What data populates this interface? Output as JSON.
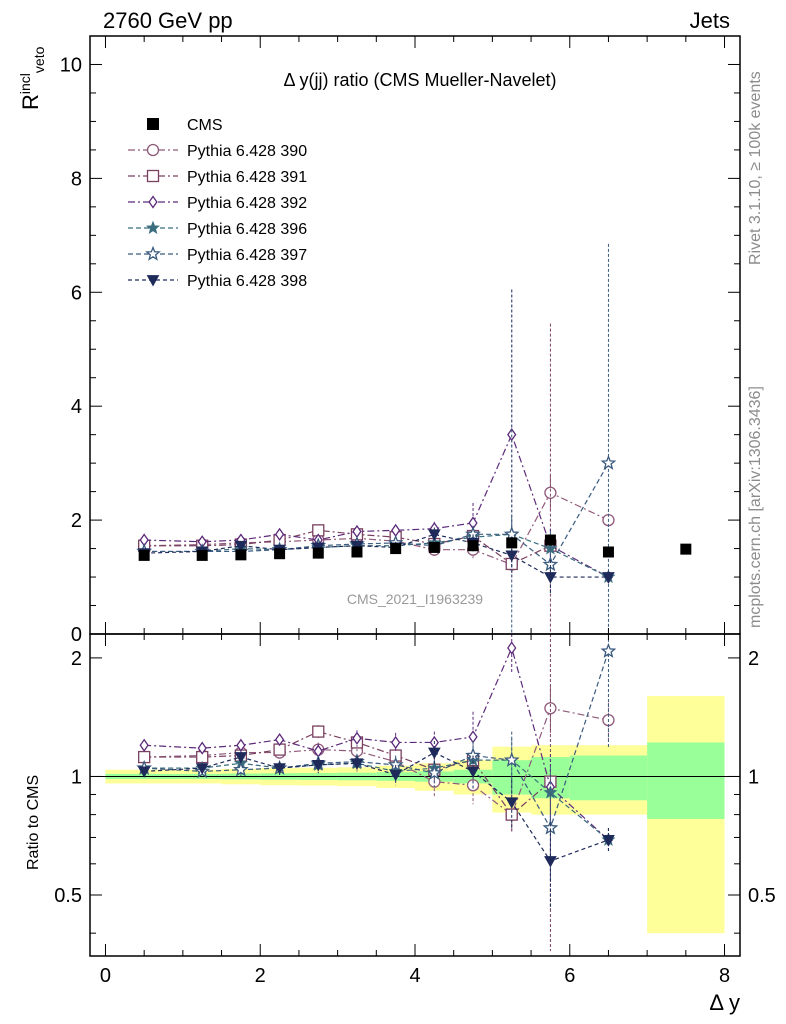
{
  "header": {
    "left": "2760 GeV pp",
    "right": "Jets"
  },
  "side_labels": {
    "rivet": "Rivet 3.1.10, ≥ 100k events",
    "mcplots": "mcplots.cern.ch [arXiv:1306.3436]"
  },
  "chart_data": {
    "type": "scatter",
    "title": "Δ y(jj) ratio (CMS Mueller-Navelet)",
    "watermark": "CMS_2021_I1963239",
    "ylabel_main": "R",
    "ylabel_sup": "incl",
    "ylabel_sub": "veto",
    "ylabel_ratio": "Ratio to CMS",
    "xlabel": "Δ y",
    "xlim": [
      -0.2,
      8.2
    ],
    "ylim_main": [
      0,
      10.5
    ],
    "ylim_ratio": [
      0.35,
      2.3
    ],
    "x_ticks": [
      "0",
      "2",
      "4",
      "6",
      "8"
    ],
    "y_ticks_main": [
      "0",
      "2",
      "4",
      "6",
      "8",
      "10"
    ],
    "y_ticks_ratio": [
      "0.5",
      "1",
      "2"
    ],
    "legend_position": "top-left",
    "data": {
      "name": "CMS",
      "color": "#000000",
      "x": [
        0.5,
        1.25,
        1.75,
        2.25,
        2.75,
        3.25,
        3.75,
        4.25,
        4.75,
        5.25,
        5.75,
        6.5,
        7.5
      ],
      "y": [
        1.38,
        1.38,
        1.39,
        1.41,
        1.42,
        1.44,
        1.5,
        1.52,
        1.55,
        1.6,
        1.65,
        1.44,
        1.49
      ]
    },
    "bands": {
      "edges": [
        0,
        1.0,
        1.5,
        2.0,
        2.5,
        3.0,
        3.5,
        4.0,
        4.5,
        5.0,
        5.5,
        6.0,
        7.0,
        8.0
      ],
      "stat_color": "#99ff99",
      "total_color": "#ffff99",
      "stat_half": [
        0.015,
        0.015,
        0.017,
        0.019,
        0.02,
        0.022,
        0.025,
        0.03,
        0.04,
        0.1,
        0.12,
        0.13,
        0.22
      ],
      "total_half": [
        0.04,
        0.04,
        0.045,
        0.05,
        0.052,
        0.055,
        0.065,
        0.08,
        0.1,
        0.19,
        0.2,
        0.2,
        0.6
      ]
    },
    "series": [
      {
        "name": "Pythia 6.428 390",
        "color": "#8f5a7a",
        "marker": "circle-open",
        "dash": "7,3,2,3",
        "x": [
          0.5,
          1.25,
          1.75,
          2.25,
          2.75,
          3.25,
          3.75,
          4.25,
          4.75,
          5.25,
          5.75,
          6.5
        ],
        "y": [
          1.55,
          1.57,
          1.6,
          1.62,
          1.65,
          1.68,
          1.63,
          1.48,
          1.48,
          1.22,
          2.48,
          2.0
        ],
        "err": [
          0.05,
          0.05,
          0.06,
          0.06,
          0.07,
          0.09,
          0.1,
          0.12,
          0.15,
          0.15,
          0.3,
          0.2
        ],
        "ratio": [
          1.12,
          1.13,
          1.15,
          1.15,
          1.17,
          1.16,
          1.09,
          0.97,
          0.95,
          0.8,
          1.49,
          1.39
        ],
        "rerr": [
          0.03,
          0.03,
          0.04,
          0.04,
          0.05,
          0.06,
          0.07,
          0.08,
          0.1,
          0.08,
          0.2,
          0.15
        ]
      },
      {
        "name": "Pythia 6.428 391",
        "color": "#7a4060",
        "marker": "square-open",
        "dash": "7,3,2,3",
        "x": [
          0.5,
          1.25,
          1.75,
          2.25,
          2.75,
          3.25,
          3.75,
          4.25,
          4.75,
          5.25,
          5.75
        ],
        "y": [
          1.55,
          1.55,
          1.57,
          1.65,
          1.82,
          1.75,
          1.7,
          1.58,
          1.72,
          1.23,
          1.55
        ],
        "err": [
          0.05,
          0.05,
          0.06,
          0.07,
          0.08,
          0.1,
          0.1,
          0.12,
          0.15,
          0.15,
          3.9
        ],
        "ratio": [
          1.12,
          1.12,
          1.13,
          1.17,
          1.3,
          1.22,
          1.13,
          1.04,
          1.1,
          0.8,
          0.97
        ],
        "rerr": [
          0.03,
          0.03,
          0.04,
          0.04,
          0.05,
          0.06,
          0.07,
          0.08,
          0.1,
          0.08,
          2.0
        ]
      },
      {
        "name": "Pythia 6.428 392",
        "color": "#5c2a7a",
        "marker": "diamond-open",
        "dash": "7,3,2,3",
        "x": [
          0.5,
          1.25,
          1.75,
          2.25,
          2.75,
          3.25,
          3.75,
          4.25,
          4.75,
          5.25,
          5.75,
          6.5
        ],
        "y": [
          1.65,
          1.62,
          1.65,
          1.75,
          1.65,
          1.8,
          1.82,
          1.85,
          1.95,
          3.5,
          1.55,
          1.0
        ],
        "err": [
          0.05,
          0.05,
          0.06,
          0.07,
          0.08,
          0.1,
          0.1,
          0.12,
          0.35,
          2.55,
          0.3,
          0.1
        ],
        "ratio": [
          1.2,
          1.18,
          1.2,
          1.24,
          1.16,
          1.25,
          1.22,
          1.22,
          1.26,
          2.12,
          0.94,
          0.69
        ],
        "rerr": [
          0.03,
          0.03,
          0.04,
          0.04,
          0.05,
          0.06,
          0.07,
          0.08,
          0.2,
          0.3,
          0.2,
          0.05
        ]
      },
      {
        "name": "Pythia 6.428 396",
        "color": "#3a6e7e",
        "marker": "star-filled",
        "dash": "5,3",
        "x": [
          0.5,
          1.25,
          1.75,
          2.25,
          2.75,
          3.25,
          3.75,
          4.25,
          4.75,
          5.25,
          5.75,
          6.5
        ],
        "y": [
          1.45,
          1.45,
          1.5,
          1.48,
          1.52,
          1.55,
          1.55,
          1.6,
          1.7,
          1.75,
          1.5,
          1.0
        ],
        "err": [
          0.05,
          0.05,
          0.06,
          0.06,
          0.07,
          0.08,
          0.1,
          0.12,
          0.15,
          0.3,
          0.3,
          0.1
        ],
        "ratio": [
          1.05,
          1.05,
          1.08,
          1.05,
          1.07,
          1.08,
          1.03,
          1.05,
          1.1,
          1.1,
          0.91,
          0.69
        ],
        "rerr": [
          0.03,
          0.03,
          0.04,
          0.04,
          0.05,
          0.05,
          0.06,
          0.08,
          0.1,
          0.15,
          0.15,
          0.05
        ]
      },
      {
        "name": "Pythia 6.428 397",
        "color": "#3a5a7e",
        "marker": "star-open",
        "dash": "5,3",
        "x": [
          0.5,
          1.25,
          1.75,
          2.25,
          2.75,
          3.25,
          3.75,
          4.25,
          4.75,
          5.25,
          5.75,
          6.5
        ],
        "y": [
          1.45,
          1.45,
          1.45,
          1.48,
          1.55,
          1.58,
          1.6,
          1.55,
          1.75,
          1.75,
          1.22,
          3.0
        ],
        "err": [
          0.05,
          0.05,
          0.06,
          0.06,
          0.07,
          0.08,
          0.1,
          0.12,
          0.15,
          4.3,
          0.3,
          3.85
        ],
        "ratio": [
          1.05,
          1.03,
          1.04,
          1.05,
          1.08,
          1.09,
          1.07,
          1.02,
          1.13,
          1.1,
          0.74,
          2.08
        ],
        "rerr": [
          0.03,
          0.03,
          0.04,
          0.04,
          0.05,
          0.05,
          0.06,
          0.08,
          0.1,
          0.2,
          0.2,
          0.9
        ]
      },
      {
        "name": "Pythia 6.428 398",
        "color": "#1e2a5a",
        "marker": "triangle-down",
        "dash": "4,3",
        "x": [
          0.5,
          1.25,
          1.75,
          2.25,
          2.75,
          3.25,
          3.75,
          4.25,
          4.75,
          5.25,
          5.75,
          6.5
        ],
        "y": [
          1.42,
          1.45,
          1.55,
          1.48,
          1.52,
          1.55,
          1.52,
          1.75,
          1.6,
          1.38,
          1.0,
          1.0
        ],
        "err": [
          0.05,
          0.05,
          0.06,
          0.06,
          0.07,
          0.08,
          0.1,
          0.12,
          0.15,
          0.2,
          0.3,
          0.1
        ],
        "ratio": [
          1.03,
          1.05,
          1.12,
          1.05,
          1.07,
          1.08,
          1.01,
          1.15,
          1.03,
          0.86,
          0.61,
          0.69
        ],
        "rerr": [
          0.03,
          0.03,
          0.04,
          0.04,
          0.05,
          0.05,
          0.06,
          0.08,
          0.1,
          0.12,
          0.15,
          0.05
        ]
      }
    ]
  }
}
